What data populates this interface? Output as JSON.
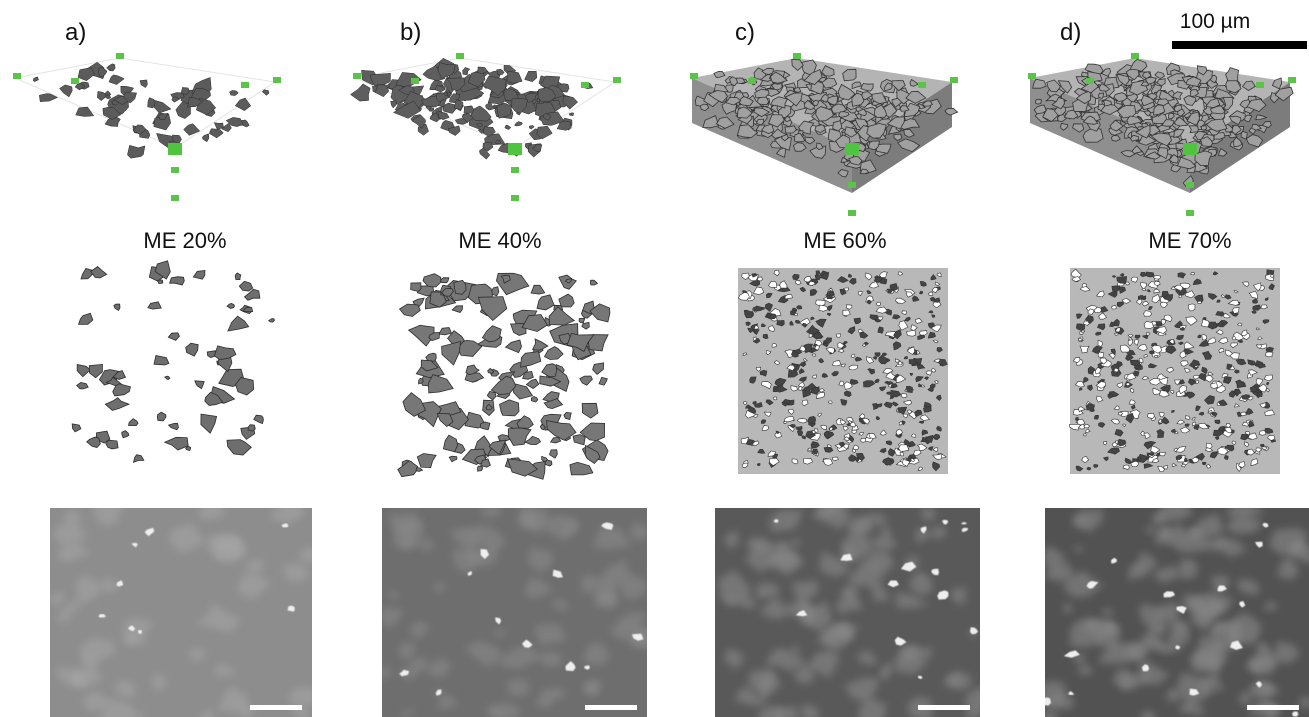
{
  "panels": [
    {
      "label": "a)",
      "caption": "ME 20%"
    },
    {
      "label": "b)",
      "caption": "ME 40%"
    },
    {
      "label": "c)",
      "caption": "ME 60%"
    },
    {
      "label": "d)",
      "caption": "ME 70%"
    }
  ],
  "scale_bar": "100 µm"
}
